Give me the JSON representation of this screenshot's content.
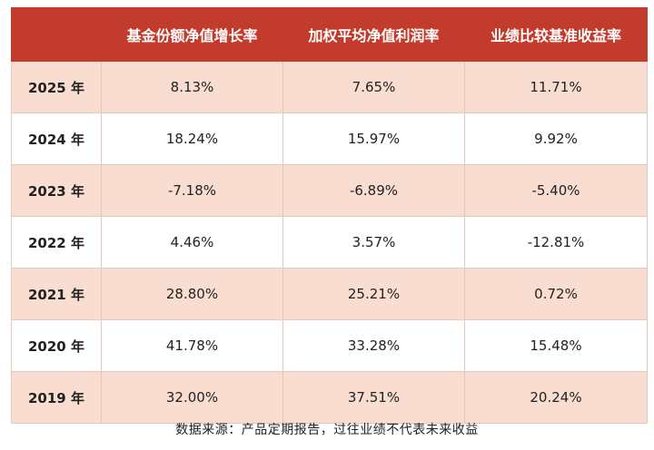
{
  "table": {
    "headers": [
      "",
      "基金份额净值增长率",
      "加权平均净值利润率",
      "业绩比较基准收益率"
    ],
    "rows": [
      {
        "year": "2025 年",
        "nav_growth": "8.13%",
        "weighted_profit": "7.65%",
        "benchmark": "11.71%"
      },
      {
        "year": "2024 年",
        "nav_growth": "18.24%",
        "weighted_profit": "15.97%",
        "benchmark": "9.92%"
      },
      {
        "year": "2023 年",
        "nav_growth": "-7.18%",
        "weighted_profit": "-6.89%",
        "benchmark": "-5.40%"
      },
      {
        "year": "2022 年",
        "nav_growth": "4.46%",
        "weighted_profit": "3.57%",
        "benchmark": "-12.81%"
      },
      {
        "year": "2021 年",
        "nav_growth": "28.80%",
        "weighted_profit": "25.21%",
        "benchmark": "0.72%"
      },
      {
        "year": "2020 年",
        "nav_growth": "41.78%",
        "weighted_profit": "33.28%",
        "benchmark": "15.48%"
      },
      {
        "year": "2019 年",
        "nav_growth": "32.00%",
        "weighted_profit": "37.51%",
        "benchmark": "20.24%"
      }
    ]
  },
  "footnote": "数据来源：产品定期报告，过往业绩不代表未来收益",
  "colors": {
    "header_bg": "#c33b2c",
    "stripe_bg": "#f8ddd0",
    "header_text": "#ffffff"
  }
}
